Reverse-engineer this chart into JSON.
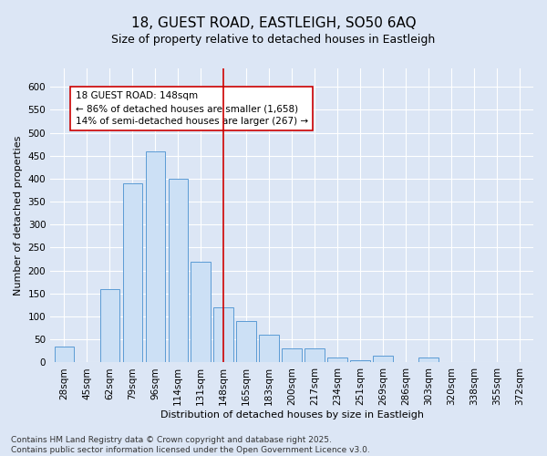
{
  "title": "18, GUEST ROAD, EASTLEIGH, SO50 6AQ",
  "subtitle": "Size of property relative to detached houses in Eastleigh",
  "xlabel": "Distribution of detached houses by size in Eastleigh",
  "ylabel": "Number of detached properties",
  "categories": [
    "28sqm",
    "45sqm",
    "62sqm",
    "79sqm",
    "96sqm",
    "114sqm",
    "131sqm",
    "148sqm",
    "165sqm",
    "183sqm",
    "200sqm",
    "217sqm",
    "234sqm",
    "251sqm",
    "269sqm",
    "286sqm",
    "303sqm",
    "320sqm",
    "338sqm",
    "355sqm",
    "372sqm"
  ],
  "values": [
    35,
    0,
    160,
    390,
    460,
    400,
    220,
    120,
    90,
    60,
    30,
    30,
    10,
    5,
    15,
    0,
    10,
    0,
    0,
    0,
    0
  ],
  "bar_color": "#cce0f5",
  "bar_edge_color": "#5b9bd5",
  "vline_x_index": 7,
  "vline_color": "#cc0000",
  "annotation_text": "18 GUEST ROAD: 148sqm\n← 86% of detached houses are smaller (1,658)\n14% of semi-detached houses are larger (267) →",
  "annotation_box_color": "#ffffff",
  "annotation_box_edge_color": "#cc0000",
  "ylim": [
    0,
    640
  ],
  "yticks": [
    0,
    50,
    100,
    150,
    200,
    250,
    300,
    350,
    400,
    450,
    500,
    550,
    600
  ],
  "background_color": "#dce6f5",
  "plot_bg_color": "#dce6f5",
  "footer_text": "Contains HM Land Registry data © Crown copyright and database right 2025.\nContains public sector information licensed under the Open Government Licence v3.0.",
  "title_fontsize": 11,
  "subtitle_fontsize": 9,
  "axis_label_fontsize": 8,
  "tick_fontsize": 7.5,
  "annotation_fontsize": 7.5,
  "footer_fontsize": 6.5
}
